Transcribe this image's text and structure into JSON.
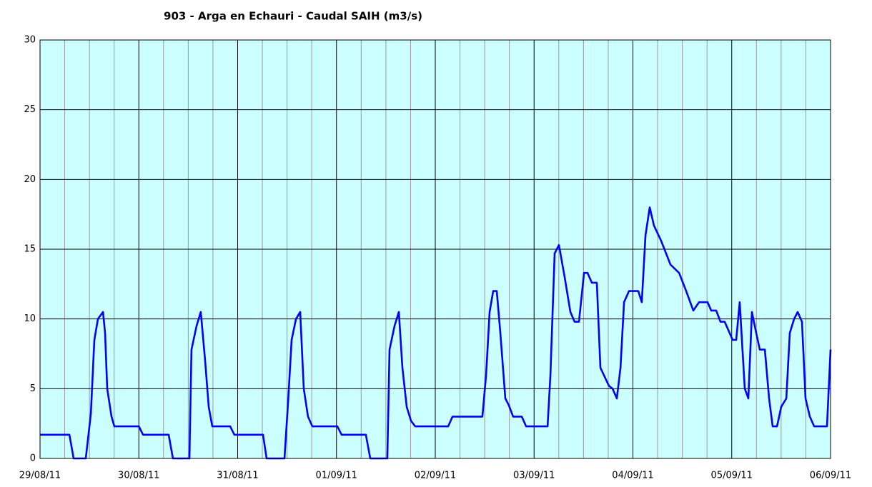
{
  "chart_data": {
    "type": "line",
    "title": "903 - Arga en Echauri - Caudal SAIH (m3/s)",
    "x": [
      0,
      0.297,
      0.34,
      0.463,
      0.514,
      0.55,
      0.586,
      0.637,
      0.658,
      0.68,
      0.723,
      0.752,
      1.0,
      1.042,
      1.302,
      1.345,
      1.512,
      1.533,
      1.584,
      1.627,
      1.671,
      1.707,
      1.743,
      1.924,
      1.967,
      2.257,
      2.293,
      2.474,
      2.51,
      2.546,
      2.59,
      2.633,
      2.669,
      2.712,
      2.756,
      3.009,
      3.052,
      3.298,
      3.342,
      3.515,
      3.537,
      3.588,
      3.631,
      3.667,
      3.711,
      3.754,
      3.797,
      4.13,
      4.174,
      4.477,
      4.514,
      4.55,
      4.586,
      4.622,
      4.658,
      4.709,
      4.745,
      4.788,
      4.875,
      4.919,
      5.136,
      5.165,
      5.208,
      5.251,
      5.309,
      5.367,
      5.41,
      5.454,
      5.505,
      5.541,
      5.584,
      5.635,
      5.671,
      5.758,
      5.794,
      5.837,
      5.874,
      5.91,
      5.96,
      6.054,
      6.09,
      6.127,
      6.17,
      6.213,
      6.286,
      6.38,
      6.467,
      6.539,
      6.611,
      6.669,
      6.756,
      6.792,
      6.843,
      6.886,
      6.929,
      7.009,
      7.045,
      7.081,
      7.132,
      7.168,
      7.204,
      7.248,
      7.284,
      7.335,
      7.378,
      7.414,
      7.458,
      7.501,
      7.552,
      7.588,
      7.631,
      7.667,
      7.711,
      7.747,
      7.79,
      7.834,
      7.964,
      8.0
    ],
    "values": [
      1.7,
      1.7,
      0,
      0,
      3.2,
      8.5,
      10,
      10.5,
      9,
      5,
      3,
      2.3,
      2.3,
      1.7,
      1.7,
      0,
      0,
      7.8,
      9.5,
      10.5,
      7,
      3.7,
      2.3,
      2.3,
      1.7,
      1.7,
      0,
      0,
      4,
      8.5,
      10,
      10.5,
      5,
      3,
      2.3,
      2.3,
      1.7,
      1.7,
      0,
      0,
      7.8,
      9.5,
      10.5,
      6.5,
      3.7,
      2.7,
      2.3,
      2.3,
      3,
      3,
      6,
      10.5,
      12,
      12,
      9,
      4.3,
      3.8,
      3,
      3,
      2.3,
      2.3,
      6,
      14.7,
      15.3,
      13,
      10.5,
      9.8,
      9.8,
      13.3,
      13.3,
      12.6,
      12.6,
      6.5,
      5.2,
      5,
      4.3,
      6.5,
      11.2,
      12,
      12,
      11.2,
      16,
      18,
      16.7,
      15.6,
      13.9,
      13.3,
      12,
      10.6,
      11.2,
      11.2,
      10.6,
      10.6,
      9.8,
      9.8,
      8.5,
      8.5,
      11.2,
      5,
      4.3,
      10.5,
      9,
      7.8,
      7.8,
      4.3,
      2.3,
      2.3,
      3.7,
      4.3,
      9,
      10,
      10.5,
      9.8,
      4.3,
      3,
      2.3,
      2.3,
      7.8
    ],
    "color": "#0000ff",
    "xlim": [
      0,
      8
    ],
    "xticks": [
      {
        "value": 0,
        "label": "29/08/11"
      },
      {
        "value": 1,
        "label": "30/08/11"
      },
      {
        "value": 2,
        "label": "31/08/11"
      },
      {
        "value": 3,
        "label": "01/09/11"
      },
      {
        "value": 4,
        "label": "02/09/11"
      },
      {
        "value": 5,
        "label": "03/09/11"
      },
      {
        "value": 6,
        "label": "04/09/11"
      },
      {
        "value": 7,
        "label": "05/09/11"
      },
      {
        "value": 8,
        "label": "06/09/11"
      }
    ],
    "xminor_ticks": [
      0.25,
      0.5,
      0.75,
      1.25,
      1.5,
      1.75,
      2.25,
      2.5,
      2.75,
      3.25,
      3.5,
      3.75,
      4.25,
      4.5,
      4.75,
      5.25,
      5.5,
      5.75,
      6.25,
      6.5,
      6.75,
      7.25,
      7.5,
      7.75
    ],
    "ylim": [
      0,
      30
    ],
    "yticks": [
      0,
      5,
      10,
      15,
      20,
      25,
      30
    ],
    "grid": true
  }
}
